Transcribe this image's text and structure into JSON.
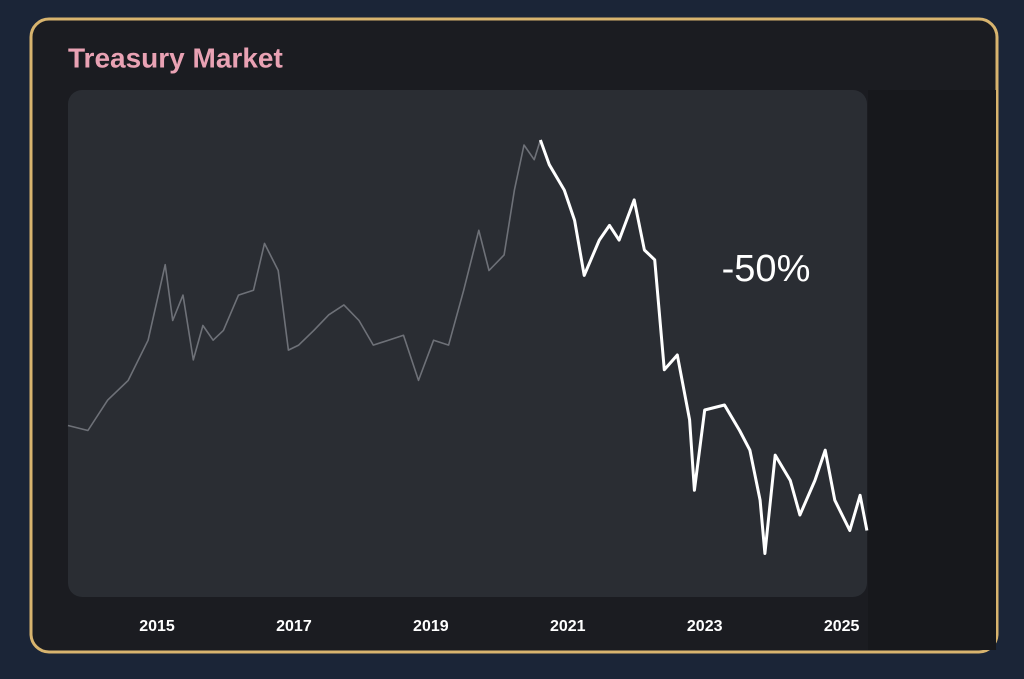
{
  "chart_data": {
    "type": "line",
    "title": "Treasury Market",
    "annotation": "-50%",
    "x": [
      2013.7,
      2013.99,
      2014.28,
      2014.58,
      2014.87,
      2015.12,
      2015.23,
      2015.38,
      2015.53,
      2015.67,
      2015.82,
      2015.97,
      2016.19,
      2016.41,
      2016.57,
      2016.77,
      2016.92,
      2017.07,
      2017.29,
      2017.51,
      2017.73,
      2017.95,
      2018.16,
      2018.38,
      2018.6,
      2018.82,
      2019.04,
      2019.26,
      2019.48,
      2019.7,
      2019.85,
      2020.07,
      2020.22,
      2020.36,
      2020.51,
      2020.6,
      2020.73,
      2020.95,
      2021.1,
      2021.24,
      2021.46,
      2021.61,
      2021.75,
      2021.97,
      2022.12,
      2022.27,
      2022.41,
      2022.6,
      2022.78,
      2022.85,
      2023.0,
      2023.29,
      2023.51,
      2023.66,
      2023.81,
      2023.88,
      2024.03,
      2024.25,
      2024.39,
      2024.61,
      2024.76,
      2024.9,
      2025.12,
      2025.27,
      2025.37
    ],
    "series": [
      {
        "color": "#6e7178",
        "values": [
          65.2,
          64.6,
          68.3,
          70.7,
          75.6,
          84.8,
          78.0,
          81.1,
          73.2,
          77.4,
          75.6,
          76.8,
          81.1,
          81.7,
          87.4,
          84.1,
          74.4,
          75.0,
          76.8,
          78.7,
          79.9,
          78.0,
          75.0,
          75.6,
          76.2,
          70.7,
          75.6,
          75.0,
          81.7,
          89.0,
          84.1,
          86.0,
          93.9,
          99.4,
          97.6,
          100.0,
          null,
          null,
          null,
          null,
          null,
          null,
          null,
          null,
          null,
          null,
          null,
          null,
          null,
          null,
          null,
          null,
          null,
          null,
          null,
          null,
          null,
          null,
          null,
          null,
          null,
          null,
          null,
          null,
          null
        ]
      },
      {
        "color": "#ffffff",
        "values": [
          null,
          null,
          null,
          null,
          null,
          null,
          null,
          null,
          null,
          null,
          null,
          null,
          null,
          null,
          null,
          null,
          null,
          null,
          null,
          null,
          null,
          null,
          null,
          null,
          null,
          null,
          null,
          null,
          null,
          null,
          null,
          null,
          null,
          null,
          null,
          100.0,
          97.0,
          93.9,
          90.2,
          83.5,
          87.8,
          89.6,
          87.8,
          92.7,
          86.6,
          85.4,
          72.0,
          73.8,
          65.9,
          57.3,
          67.1,
          67.7,
          64.6,
          62.2,
          56.1,
          49.6,
          61.6,
          58.5,
          54.3,
          58.5,
          62.2,
          56.1,
          52.4,
          56.7,
          52.4
        ]
      }
    ],
    "xlim": [
      2013.7,
      2025.4
    ],
    "xticks": [
      2015,
      2017,
      2019,
      2021,
      2023,
      2025
    ],
    "ylim": [
      44.3,
      106.1
    ]
  }
}
